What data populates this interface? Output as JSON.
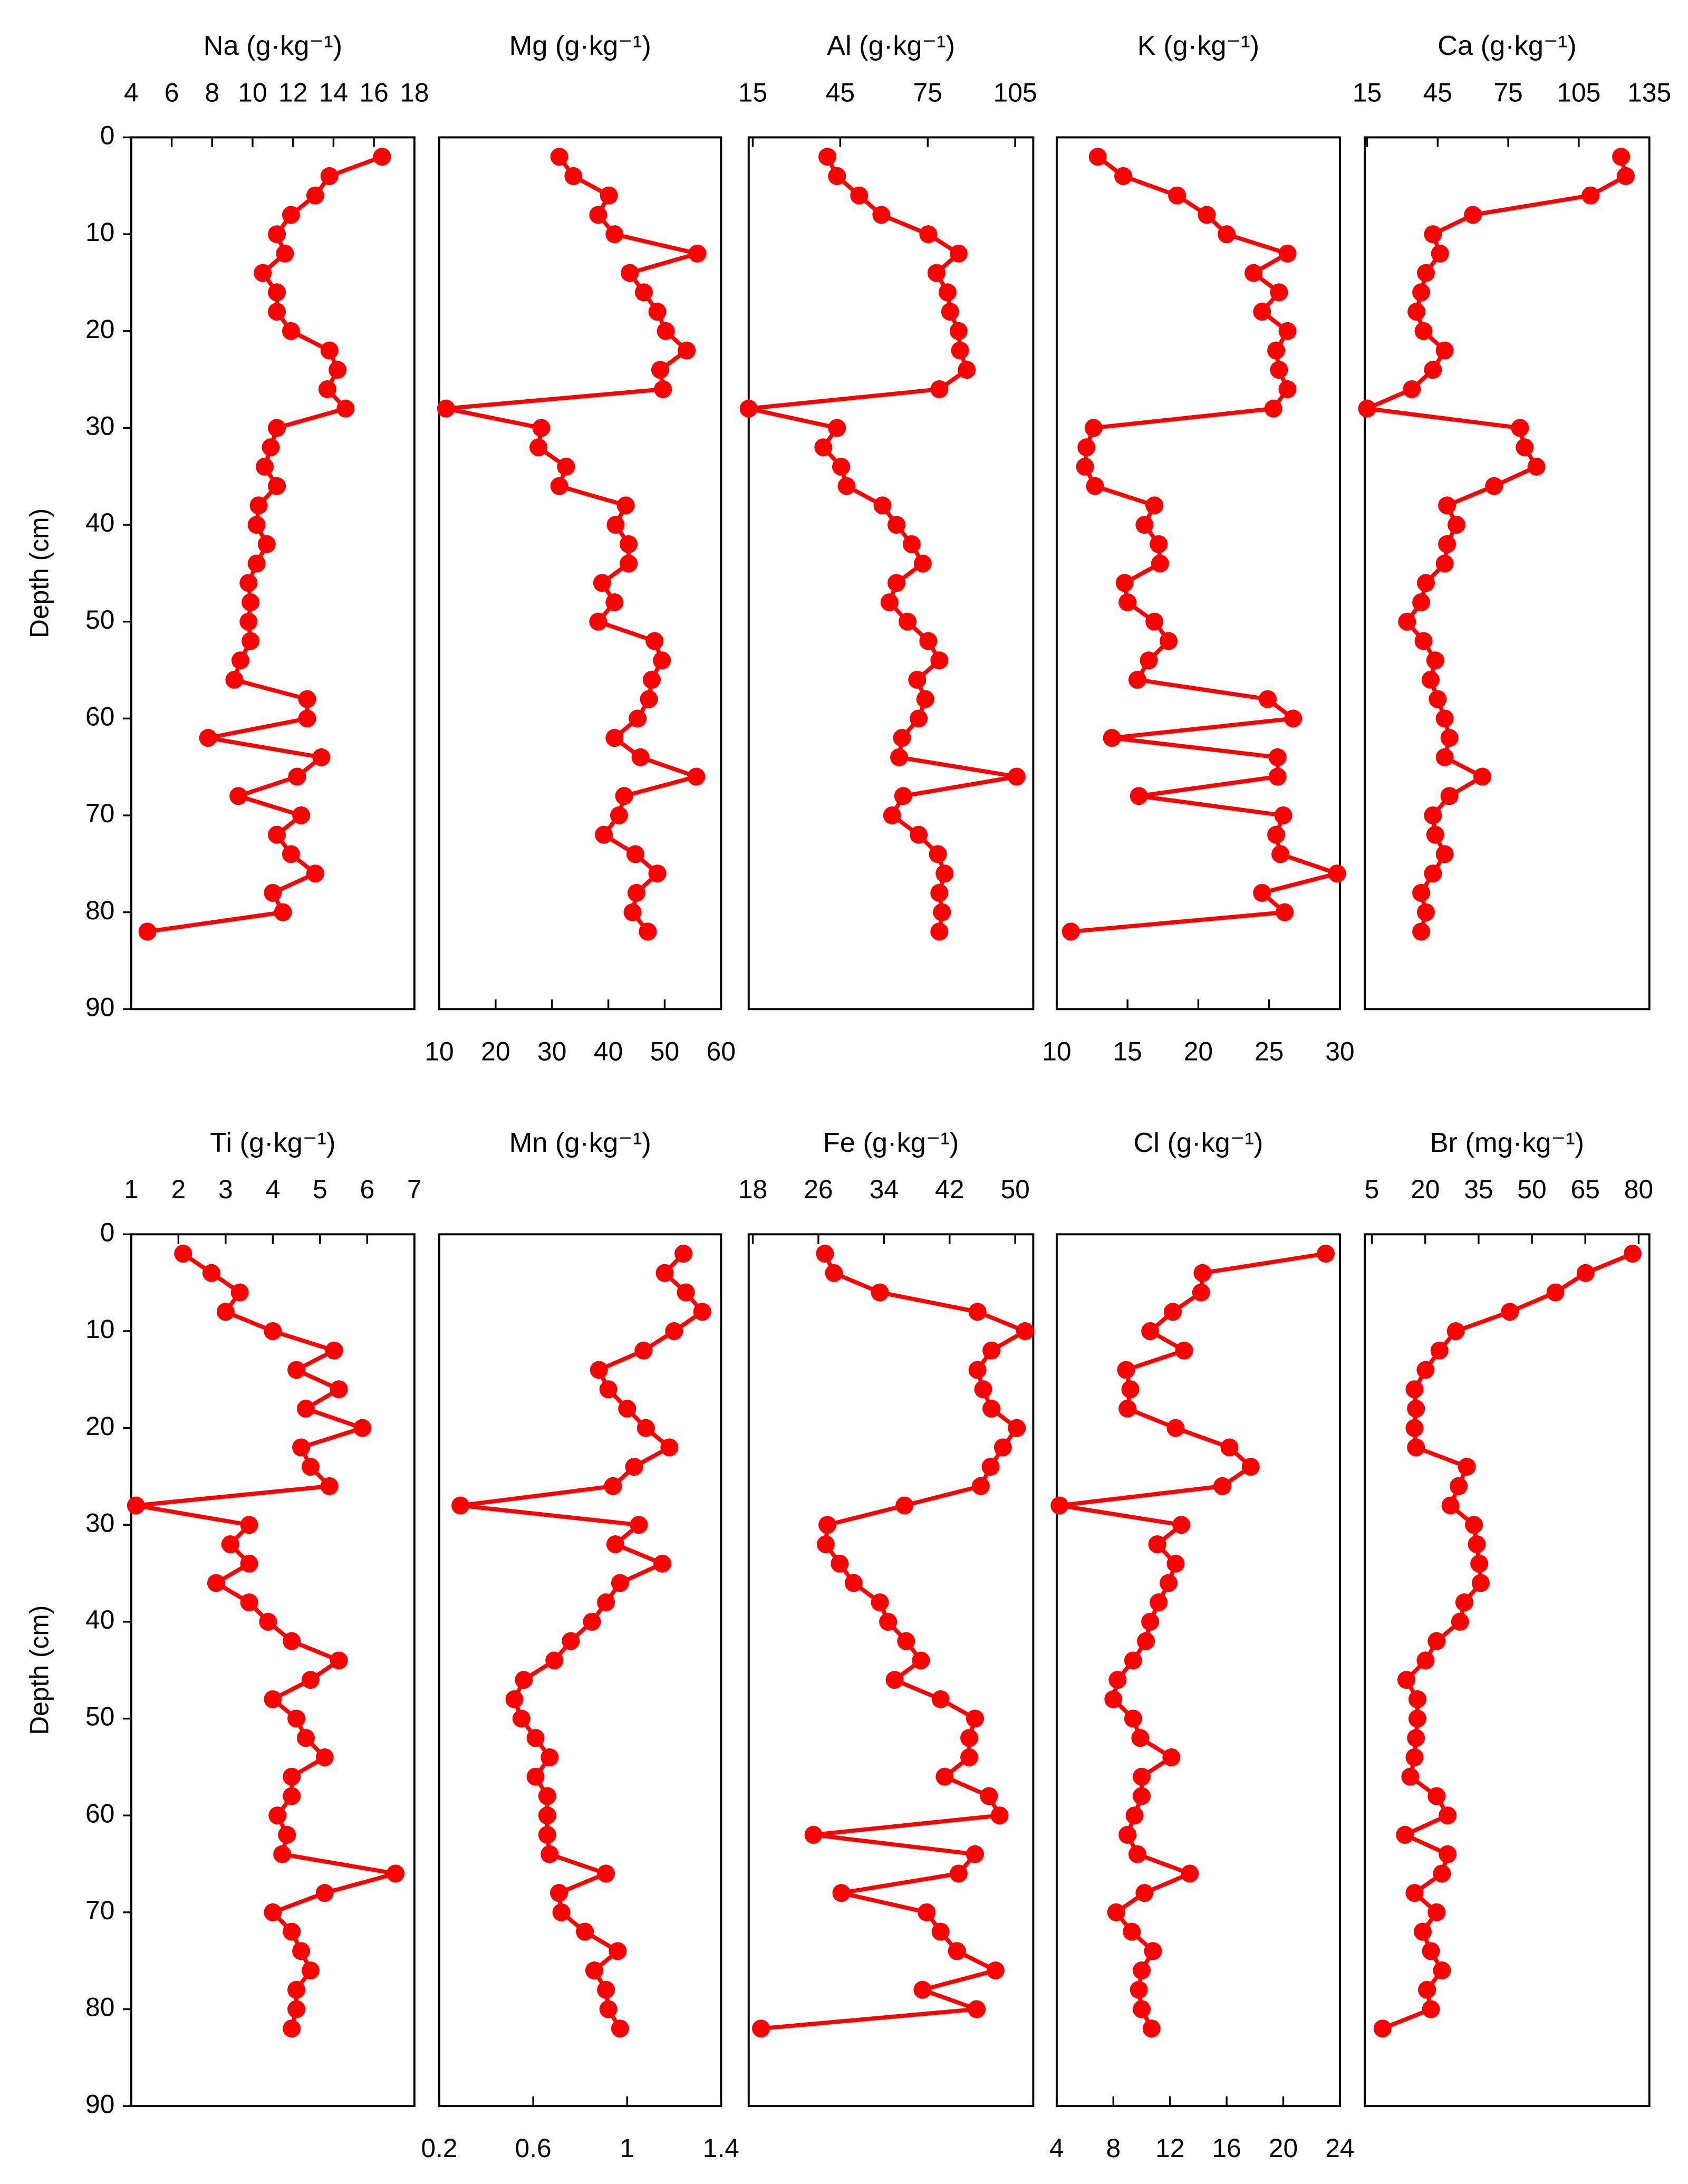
{
  "chart_data": [
    {
      "type": "line",
      "title": "Na (g·kg⁻¹)",
      "color": "#ff0000",
      "xaxis": "top",
      "yreverse": true,
      "ylabel": "Depth (cm)",
      "xlim": [
        4,
        18
      ],
      "xticks": [
        4,
        6,
        8,
        10,
        12,
        14,
        16,
        18
      ],
      "ylim": [
        0,
        90
      ],
      "yticks": [
        0,
        10,
        20,
        30,
        40,
        50,
        60,
        70,
        80,
        90
      ],
      "y": [
        2,
        4,
        6,
        8,
        10,
        12,
        14,
        16,
        18,
        20,
        22,
        24,
        26,
        28,
        30,
        32,
        34,
        36,
        38,
        40,
        42,
        44,
        46,
        48,
        50,
        52,
        54,
        56,
        58,
        60,
        62,
        64,
        66,
        68,
        70,
        72,
        74,
        76,
        78,
        80,
        82
      ],
      "x": [
        16.4,
        13.8,
        13.1,
        11.9,
        11.2,
        11.6,
        10.5,
        11.2,
        11.2,
        11.9,
        13.8,
        14.2,
        13.7,
        14.6,
        11.2,
        10.9,
        10.6,
        11.2,
        10.3,
        10.2,
        10.7,
        10.2,
        9.8,
        9.9,
        9.8,
        9.9,
        9.4,
        9.1,
        12.7,
        12.7,
        7.8,
        13.4,
        12.2,
        9.3,
        12.4,
        11.2,
        11.9,
        13.1,
        11.0,
        11.5,
        4.8
      ]
    },
    {
      "type": "line",
      "title": "Mg (g·kg⁻¹)",
      "color": "#ff0000",
      "xaxis": "bottom",
      "yreverse": true,
      "xlim": [
        10,
        60
      ],
      "xticks": [
        10,
        20,
        30,
        40,
        50,
        60
      ],
      "ylim": [
        0,
        90
      ],
      "y": [
        2,
        4,
        6,
        8,
        10,
        12,
        14,
        16,
        18,
        20,
        22,
        24,
        26,
        28,
        30,
        32,
        34,
        36,
        38,
        40,
        42,
        44,
        46,
        48,
        50,
        52,
        54,
        56,
        58,
        60,
        62,
        64,
        66,
        68,
        70,
        72,
        74,
        76,
        78,
        80,
        82
      ],
      "x": [
        31.3,
        33.8,
        40.1,
        38.2,
        41.1,
        55.8,
        43.8,
        46.3,
        48.7,
        50.2,
        53.9,
        49.2,
        49.7,
        11.2,
        28.1,
        27.6,
        32.5,
        31.3,
        43.1,
        41.3,
        43.6,
        43.6,
        38.9,
        41.1,
        38.2,
        48.2,
        49.5,
        47.7,
        47.2,
        45.2,
        41.1,
        45.7,
        55.6,
        42.8,
        41.9,
        39.2,
        44.8,
        48.7,
        45.0,
        44.3,
        47.0
      ]
    },
    {
      "type": "line",
      "title": "Al (g·kg⁻¹)",
      "color": "#ff0000",
      "xaxis": "top",
      "yreverse": true,
      "xlim": [
        13.6,
        111.2
      ],
      "xticks": [
        15,
        45,
        75,
        105
      ],
      "ylim": [
        0,
        90
      ],
      "y": [
        2,
        4,
        6,
        8,
        10,
        12,
        14,
        16,
        18,
        20,
        22,
        24,
        26,
        28,
        30,
        32,
        34,
        36,
        38,
        40,
        42,
        44,
        46,
        48,
        50,
        52,
        54,
        56,
        58,
        60,
        62,
        64,
        66,
        68,
        70,
        72,
        74,
        76,
        78,
        80,
        82
      ],
      "x": [
        40.6,
        43.9,
        51.5,
        59.1,
        75.2,
        85.6,
        78.0,
        81.8,
        82.7,
        85.6,
        86.1,
        88.4,
        79.0,
        13.6,
        43.9,
        39.2,
        45.3,
        47.2,
        59.5,
        64.3,
        69.5,
        73.3,
        64.3,
        61.9,
        68.1,
        75.2,
        79.0,
        71.4,
        74.2,
        71.9,
        66.2,
        65.2,
        105.5,
        66.6,
        62.8,
        71.9,
        78.5,
        80.8,
        79.0,
        79.9,
        79.0
      ]
    },
    {
      "type": "line",
      "title": "K (g·kg⁻¹)",
      "color": "#ff0000",
      "xaxis": "bottom",
      "yreverse": true,
      "xlim": [
        10,
        30
      ],
      "xticks": [
        10,
        15,
        20,
        25,
        30
      ],
      "ylim": [
        0,
        90
      ],
      "y": [
        2,
        4,
        6,
        8,
        10,
        12,
        14,
        16,
        18,
        20,
        22,
        24,
        26,
        28,
        30,
        32,
        34,
        36,
        38,
        40,
        42,
        44,
        46,
        48,
        50,
        52,
        54,
        56,
        58,
        60,
        62,
        64,
        66,
        68,
        70,
        72,
        74,
        76,
        78,
        80,
        82
      ],
      "x": [
        12.9,
        14.7,
        18.5,
        20.6,
        22.0,
        26.3,
        23.9,
        25.7,
        24.5,
        26.3,
        25.5,
        25.7,
        26.3,
        25.3,
        12.6,
        12.1,
        12.0,
        12.7,
        16.9,
        16.2,
        17.2,
        17.3,
        14.8,
        15.0,
        16.9,
        17.9,
        16.5,
        15.7,
        24.9,
        26.7,
        13.9,
        25.6,
        25.6,
        15.8,
        26.0,
        25.5,
        25.8,
        29.8,
        24.5,
        26.1,
        11.0
      ]
    },
    {
      "type": "line",
      "title": "Ca (g·kg⁻¹)",
      "color": "#ff0000",
      "xaxis": "top",
      "yreverse": true,
      "xlim": [
        14,
        135
      ],
      "xticks": [
        15,
        45,
        75,
        105,
        135
      ],
      "ylim": [
        0,
        90
      ],
      "y": [
        2,
        4,
        6,
        8,
        10,
        12,
        14,
        16,
        18,
        20,
        22,
        24,
        26,
        28,
        30,
        32,
        34,
        36,
        38,
        40,
        42,
        44,
        46,
        48,
        50,
        52,
        54,
        56,
        58,
        60,
        62,
        64,
        66,
        68,
        70,
        72,
        74,
        76,
        78,
        80,
        82
      ],
      "x": [
        123,
        125,
        110,
        60,
        43,
        46,
        40,
        38,
        36,
        39,
        48,
        43,
        34,
        15,
        80,
        82,
        87,
        69,
        49,
        53,
        49,
        48,
        40,
        38,
        32,
        39,
        44,
        42,
        45,
        48,
        50,
        48,
        64,
        50,
        43,
        44,
        48,
        43,
        38,
        40,
        38
      ]
    },
    {
      "type": "line",
      "title": "Ti (g·kg⁻¹)",
      "color": "#ff0000",
      "xaxis": "top",
      "yreverse": true,
      "ylabel": "Depth (cm)",
      "xlim": [
        1,
        7
      ],
      "xticks": [
        1,
        2,
        3,
        4,
        5,
        6,
        7
      ],
      "ylim": [
        0,
        90
      ],
      "yticks": [
        0,
        10,
        20,
        30,
        40,
        50,
        60,
        70,
        80,
        90
      ],
      "y": [
        2,
        4,
        6,
        8,
        10,
        12,
        14,
        16,
        18,
        20,
        22,
        24,
        26,
        28,
        30,
        32,
        34,
        36,
        38,
        40,
        42,
        44,
        46,
        48,
        50,
        52,
        54,
        56,
        58,
        60,
        62,
        64,
        66,
        68,
        70,
        72,
        74,
        76,
        78,
        80,
        82
      ],
      "x": [
        2.1,
        2.7,
        3.3,
        3.0,
        4.0,
        5.3,
        4.5,
        5.4,
        4.7,
        5.9,
        4.6,
        4.8,
        5.2,
        1.1,
        3.5,
        3.1,
        3.5,
        2.8,
        3.5,
        3.9,
        4.4,
        5.4,
        4.8,
        4.0,
        4.5,
        4.7,
        5.1,
        4.4,
        4.4,
        4.1,
        4.3,
        4.2,
        6.6,
        5.1,
        4.0,
        4.4,
        4.6,
        4.8,
        4.5,
        4.5,
        4.4
      ]
    },
    {
      "type": "line",
      "title": "Mn (g·kg⁻¹)",
      "color": "#ff0000",
      "xaxis": "bottom",
      "yreverse": true,
      "xlim": [
        0.2,
        1.4
      ],
      "xticks": [
        0.2,
        0.6,
        1,
        1.4
      ],
      "ylim": [
        0,
        90
      ],
      "y": [
        2,
        4,
        6,
        8,
        10,
        12,
        14,
        16,
        18,
        20,
        22,
        24,
        26,
        28,
        30,
        32,
        34,
        36,
        38,
        40,
        42,
        44,
        46,
        48,
        50,
        52,
        54,
        56,
        58,
        60,
        62,
        64,
        66,
        68,
        70,
        72,
        74,
        76,
        78,
        80,
        82
      ],
      "x": [
        1.24,
        1.16,
        1.25,
        1.32,
        1.2,
        1.07,
        0.88,
        0.92,
        1.0,
        1.08,
        1.18,
        1.03,
        0.94,
        0.29,
        1.05,
        0.95,
        1.15,
        0.97,
        0.91,
        0.85,
        0.76,
        0.69,
        0.56,
        0.52,
        0.55,
        0.61,
        0.67,
        0.61,
        0.66,
        0.66,
        0.66,
        0.67,
        0.91,
        0.71,
        0.72,
        0.82,
        0.96,
        0.86,
        0.91,
        0.92,
        0.97
      ]
    },
    {
      "type": "line",
      "title": "Fe (g·kg⁻¹)",
      "color": "#ff0000",
      "xaxis": "top",
      "yreverse": true,
      "xlim": [
        17.5,
        52.2
      ],
      "xticks": [
        18,
        26,
        34,
        42,
        50
      ],
      "ylim": [
        0,
        90
      ],
      "y": [
        2,
        4,
        6,
        8,
        10,
        12,
        14,
        16,
        18,
        20,
        22,
        24,
        26,
        28,
        30,
        32,
        34,
        36,
        38,
        40,
        42,
        44,
        46,
        48,
        50,
        52,
        54,
        56,
        58,
        60,
        62,
        64,
        66,
        68,
        70,
        72,
        74,
        76,
        78,
        80,
        82
      ],
      "x": [
        26.8,
        27.9,
        33.5,
        45.4,
        51.2,
        47.1,
        45.4,
        46.1,
        47.1,
        50.2,
        48.5,
        47.0,
        45.8,
        36.5,
        27.1,
        26.9,
        28.6,
        30.3,
        33.5,
        34.5,
        36.7,
        38.5,
        35.3,
        40.9,
        45.1,
        44.4,
        44.4,
        41.4,
        46.8,
        48.1,
        25.4,
        45.1,
        43.1,
        28.8,
        39.2,
        40.9,
        42.9,
        47.6,
        38.7,
        45.3,
        19.0
      ]
    },
    {
      "type": "line",
      "title": "Cl (g·kg⁻¹)",
      "color": "#ff0000",
      "xaxis": "bottom",
      "yreverse": true,
      "xlim": [
        4,
        24
      ],
      "xticks": [
        4,
        8,
        12,
        16,
        20,
        24
      ],
      "ylim": [
        0,
        90
      ],
      "y": [
        2,
        4,
        6,
        8,
        10,
        12,
        14,
        16,
        18,
        20,
        22,
        24,
        26,
        28,
        30,
        32,
        34,
        36,
        38,
        40,
        42,
        44,
        46,
        48,
        50,
        52,
        54,
        56,
        58,
        60,
        62,
        64,
        66,
        68,
        70,
        72,
        74,
        76,
        78,
        80,
        82
      ],
      "x": [
        23.0,
        14.3,
        14.2,
        12.2,
        10.6,
        13.0,
        8.9,
        9.2,
        9.0,
        12.4,
        16.2,
        17.7,
        15.7,
        4.2,
        12.8,
        11.1,
        12.4,
        11.9,
        11.2,
        10.6,
        10.3,
        9.4,
        8.3,
        8.0,
        9.4,
        9.9,
        12.1,
        10.0,
        10.0,
        9.5,
        9.0,
        9.7,
        13.4,
        10.2,
        8.2,
        9.3,
        10.8,
        10.0,
        9.8,
        10.0,
        10.7
      ]
    },
    {
      "type": "line",
      "title": "Br (mg·kg⁻¹)",
      "color": "#ff0000",
      "xaxis": "top",
      "yreverse": true,
      "xlim": [
        3,
        83
      ],
      "xticks": [
        5,
        20,
        35,
        50,
        65,
        80
      ],
      "ylim": [
        0,
        90
      ],
      "y": [
        2,
        4,
        6,
        8,
        10,
        12,
        14,
        16,
        18,
        20,
        22,
        24,
        26,
        28,
        30,
        32,
        34,
        36,
        38,
        40,
        42,
        44,
        46,
        48,
        50,
        52,
        54,
        56,
        58,
        60,
        62,
        64,
        66,
        68,
        70,
        72,
        74,
        76,
        78,
        80,
        82
      ],
      "x": [
        78.3,
        65.1,
        56.6,
        43.8,
        28.6,
        24.0,
        20.1,
        17.0,
        17.4,
        17.0,
        17.4,
        31.7,
        29.4,
        27.1,
        33.7,
        34.5,
        35.2,
        35.6,
        31.0,
        29.8,
        23.2,
        20.1,
        14.7,
        17.8,
        17.8,
        17.4,
        17.0,
        15.8,
        23.2,
        26.3,
        14.3,
        26.3,
        24.7,
        17.0,
        23.2,
        19.3,
        21.6,
        24.7,
        20.5,
        21.6,
        8.0
      ]
    }
  ]
}
